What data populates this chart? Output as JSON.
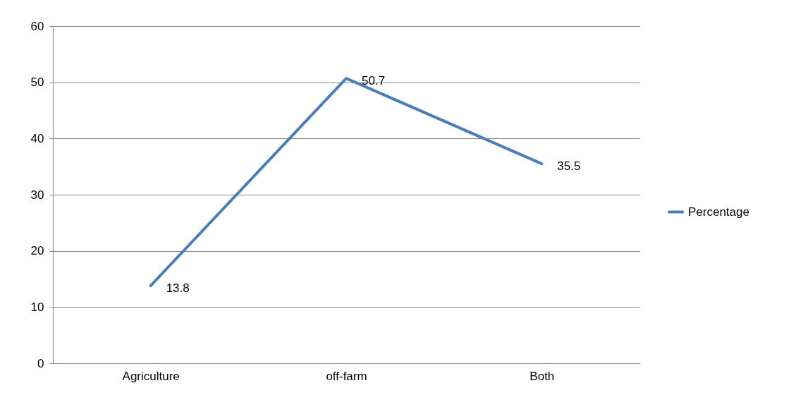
{
  "chart_data": {
    "type": "line",
    "categories": [
      "Agriculture",
      "off-farm",
      "Both"
    ],
    "series": [
      {
        "name": "Percentage",
        "color": "#4a7ebb",
        "values": [
          13.8,
          50.7,
          35.5
        ]
      }
    ],
    "ylim": [
      0,
      60
    ],
    "yticks": [
      0,
      10,
      20,
      30,
      40,
      50,
      60
    ],
    "grid": "y",
    "legend": "right",
    "data_labels": true
  }
}
